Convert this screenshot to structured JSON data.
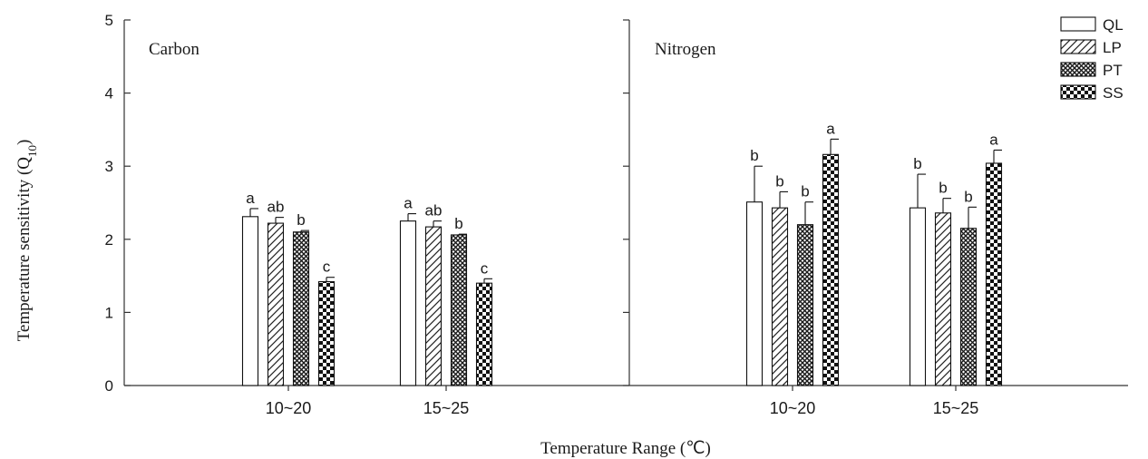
{
  "chart_data": {
    "type": "bar",
    "xlabel": "Temperature Range (℃)",
    "ylabel": "Temperature sensitivity (Q",
    "ylabel_sub": "10",
    "ylabel_close": ")",
    "ylim": [
      0,
      5
    ],
    "yticks": [
      "0",
      "1",
      "2",
      "3",
      "4",
      "5"
    ],
    "legend_position": "top-right",
    "legend": [
      {
        "name": "QL",
        "pattern": "open"
      },
      {
        "name": "LP",
        "pattern": "diagonal-hatch"
      },
      {
        "name": "PT",
        "pattern": "crosshatch"
      },
      {
        "name": "SS",
        "pattern": "checkerboard"
      }
    ],
    "panels": [
      {
        "title": "Carbon",
        "categories": [
          "10~20",
          "15~25"
        ],
        "series": [
          {
            "name": "QL",
            "values": [
              2.31,
              2.25
            ],
            "errors": [
              0.11,
              0.1
            ],
            "letters": [
              "a",
              "a"
            ]
          },
          {
            "name": "LP",
            "values": [
              2.22,
              2.17
            ],
            "errors": [
              0.08,
              0.08
            ],
            "letters": [
              "ab",
              "ab"
            ]
          },
          {
            "name": "PT",
            "values": [
              2.1,
              2.06
            ],
            "errors": [
              0.02,
              0.01
            ],
            "letters": [
              "b",
              "b"
            ]
          },
          {
            "name": "SS",
            "values": [
              1.42,
              1.4
            ],
            "errors": [
              0.06,
              0.06
            ],
            "letters": [
              "c",
              "c"
            ]
          }
        ]
      },
      {
        "title": "Nitrogen",
        "categories": [
          "10~20",
          "15~25"
        ],
        "series": [
          {
            "name": "QL",
            "values": [
              2.51,
              2.43
            ],
            "errors": [
              0.49,
              0.46
            ],
            "letters": [
              "b",
              "b"
            ]
          },
          {
            "name": "LP",
            "values": [
              2.43,
              2.36
            ],
            "errors": [
              0.22,
              0.2
            ],
            "letters": [
              "b",
              "b"
            ]
          },
          {
            "name": "PT",
            "values": [
              2.2,
              2.15
            ],
            "errors": [
              0.31,
              0.29
            ],
            "letters": [
              "b",
              "b"
            ]
          },
          {
            "name": "SS",
            "values": [
              3.16,
              3.04
            ],
            "errors": [
              0.21,
              0.18
            ],
            "letters": [
              "a",
              "a"
            ]
          }
        ]
      }
    ]
  }
}
